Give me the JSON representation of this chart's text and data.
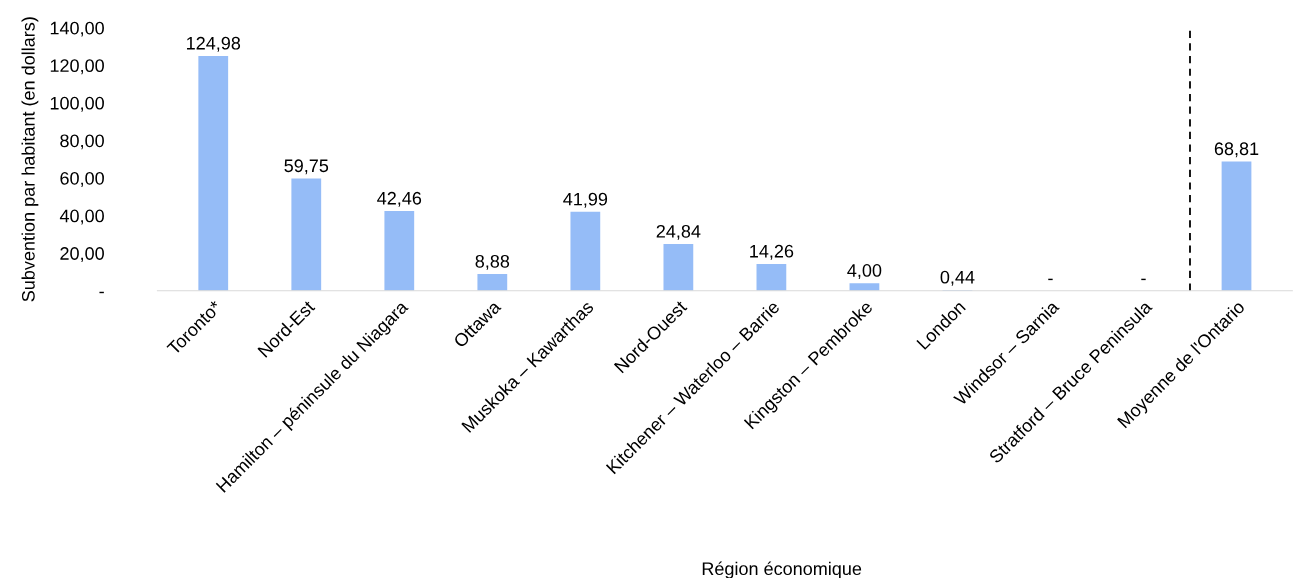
{
  "chart_data": {
    "type": "bar",
    "xlabel": "Région économique",
    "ylabel": "Subvention par habitant (en dollars)",
    "categories": [
      "Toronto*",
      "Nord-Est",
      "Hamilton – péninsule du Niagara",
      "Ottawa",
      "Muskoka – Kawarthas",
      "Nord-Ouest",
      "Kitchener – Waterloo – Barrie",
      "Kingston – Pembroke",
      "London",
      "Windsor – Sarnia",
      "Stratford – Bruce Peninsula",
      "Moyenne de l'Ontario"
    ],
    "values": [
      124.98,
      59.75,
      42.46,
      8.88,
      41.99,
      24.84,
      14.26,
      4.0,
      0.44,
      0,
      0,
      68.81
    ],
    "value_labels": [
      "124,98",
      "59,75",
      "42,46",
      "8,88",
      "41,99",
      "24,84",
      "14,26",
      "4,00",
      "0,44",
      "-",
      "-",
      "68,81"
    ],
    "color": "#95bcf7",
    "ylim": [
      0,
      140
    ],
    "yticks": [
      {
        "value": 0,
        "label": "-"
      },
      {
        "value": 20,
        "label": "20,00"
      },
      {
        "value": 40,
        "label": "40,00"
      },
      {
        "value": 60,
        "label": "60,00"
      },
      {
        "value": 80,
        "label": "80,00"
      },
      {
        "value": 100,
        "label": "100,00"
      },
      {
        "value": 120,
        "label": "120,00"
      },
      {
        "value": 140,
        "label": "140,00"
      }
    ],
    "grid": false,
    "legend": false
  }
}
